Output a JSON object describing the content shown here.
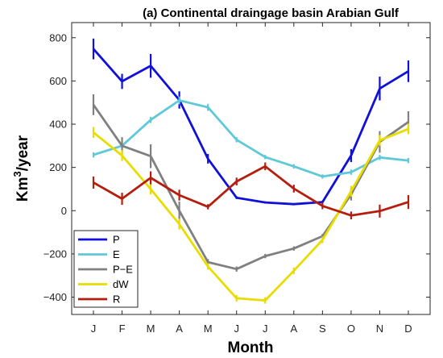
{
  "chart_data": {
    "type": "line",
    "title": "(a) Continental draingage basin Arabian Gulf",
    "xlabel": "Month",
    "ylabel": "Km³/year",
    "ylabel_base": "Km",
    "ylabel_sup": "3",
    "ylabel_rest": "/year",
    "categories": [
      "J",
      "F",
      "M",
      "A",
      "M",
      "J",
      "J",
      "A",
      "S",
      "O",
      "N",
      "D"
    ],
    "ylim": [
      -480,
      870
    ],
    "yticks": [
      -400,
      -200,
      0,
      200,
      400,
      600,
      800
    ],
    "ytick_labels": [
      "−400",
      "−200",
      "0",
      "200",
      "400",
      "600",
      "800"
    ],
    "grid": false,
    "legend_position": "bottom-left",
    "series": [
      {
        "name": "P",
        "color": "#1010d8",
        "values": [
          748,
          598,
          670,
          512,
          240,
          60,
          38,
          30,
          40,
          255,
          565,
          645
        ],
        "errors": [
          48,
          35,
          55,
          40,
          22,
          6,
          5,
          5,
          5,
          30,
          55,
          50
        ]
      },
      {
        "name": "E",
        "color": "#5fc9d8",
        "values": [
          258,
          300,
          420,
          510,
          478,
          328,
          248,
          205,
          158,
          178,
          246,
          232
        ],
        "errors": [
          12,
          12,
          14,
          18,
          16,
          12,
          10,
          10,
          10,
          12,
          12,
          12
        ]
      },
      {
        "name": "P−E",
        "color": "#808080",
        "values": [
          490,
          300,
          252,
          0,
          -238,
          -270,
          -210,
          -175,
          -118,
          75,
          318,
          410
        ],
        "errors": [
          48,
          40,
          55,
          42,
          14,
          12,
          10,
          10,
          10,
          28,
          50,
          50
        ]
      },
      {
        "name": "dW",
        "color": "#e8dc00",
        "values": [
          362,
          255,
          100,
          -62,
          -258,
          -405,
          -415,
          -278,
          -135,
          90,
          325,
          378
        ],
        "errors": [
          25,
          25,
          25,
          25,
          15,
          15,
          15,
          15,
          15,
          25,
          25,
          25
        ]
      },
      {
        "name": "R",
        "color": "#b41e0f",
        "values": [
          130,
          55,
          152,
          72,
          18,
          135,
          205,
          102,
          22,
          -22,
          -2,
          40
        ],
        "errors": [
          28,
          28,
          30,
          25,
          12,
          18,
          18,
          18,
          15,
          18,
          30,
          32
        ]
      }
    ]
  }
}
